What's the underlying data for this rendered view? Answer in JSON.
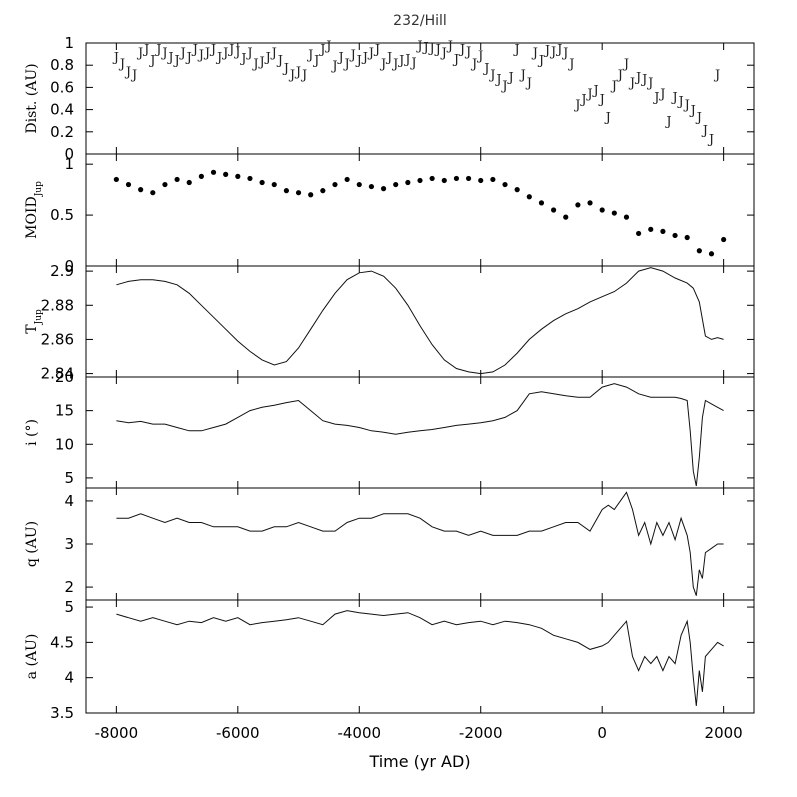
{
  "title": "232/Hill",
  "chart_data": {
    "type": "line",
    "title": "232/Hill",
    "xlabel": "Time (yr AD)",
    "xlim": [
      -8500,
      2500
    ],
    "xticks": [
      -8000,
      -6000,
      -4000,
      -2000,
      0,
      2000
    ],
    "xtick_labels": [
      "-8000",
      "-6000",
      "-4000",
      "-2000",
      "0",
      "2000"
    ],
    "panels": [
      {
        "id": "dist",
        "ylabel": "Dist. (AU)",
        "ylim": [
          0,
          1
        ],
        "yticks": [
          0,
          0.2,
          0.4,
          0.6,
          0.8,
          1
        ],
        "ytick_labels": [
          "0",
          "0.2",
          "0.4",
          "0.6",
          "0.8",
          "1"
        ],
        "style": "J-markers",
        "marker": "J",
        "x": [
          -8000,
          -7900,
          -7800,
          -7700,
          -7600,
          -7500,
          -7400,
          -7300,
          -7200,
          -7100,
          -7000,
          -6900,
          -6800,
          -6700,
          -6600,
          -6500,
          -6400,
          -6300,
          -6200,
          -6100,
          -6000,
          -5900,
          -5800,
          -5700,
          -5600,
          -5500,
          -5400,
          -5300,
          -5200,
          -5100,
          -5000,
          -4900,
          -4800,
          -4700,
          -4600,
          -4500,
          -4400,
          -4300,
          -4200,
          -4100,
          -4000,
          -3900,
          -3800,
          -3700,
          -3600,
          -3500,
          -3400,
          -3300,
          -3200,
          -3100,
          -3000,
          -2900,
          -2800,
          -2700,
          -2600,
          -2500,
          -2400,
          -2300,
          -2200,
          -2100,
          -2000,
          -1900,
          -1800,
          -1700,
          -1600,
          -1500,
          -1400,
          -1300,
          -1200,
          -1100,
          -1000,
          -900,
          -800,
          -700,
          -600,
          -500,
          -400,
          -300,
          -200,
          -100,
          0,
          100,
          200,
          300,
          400,
          500,
          600,
          700,
          800,
          900,
          1000,
          1100,
          1200,
          1300,
          1400,
          1500,
          1600,
          1700,
          1800,
          1900
        ],
        "values": [
          0.88,
          0.82,
          0.75,
          0.72,
          0.92,
          0.95,
          0.85,
          0.95,
          0.92,
          0.88,
          0.85,
          0.92,
          0.88,
          0.95,
          0.9,
          0.92,
          0.95,
          0.88,
          0.92,
          0.95,
          0.93,
          0.87,
          0.92,
          0.82,
          0.84,
          0.88,
          0.92,
          0.85,
          0.78,
          0.72,
          0.75,
          0.72,
          0.9,
          0.85,
          0.95,
          0.98,
          0.8,
          0.88,
          0.82,
          0.9,
          0.85,
          0.88,
          0.92,
          0.95,
          0.82,
          0.88,
          0.82,
          0.85,
          0.86,
          0.83,
          0.98,
          0.97,
          0.96,
          0.95,
          0.92,
          0.98,
          0.86,
          0.95,
          0.93,
          0.82,
          0.89,
          0.78,
          0.72,
          0.68,
          0.62,
          0.7,
          0.95,
          0.72,
          0.65,
          0.92,
          0.85,
          0.94,
          0.93,
          0.95,
          0.92,
          0.82,
          0.45,
          0.5,
          0.55,
          0.58,
          0.5,
          0.34,
          0.62,
          0.72,
          0.82,
          0.65,
          0.7,
          0.68,
          0.65,
          0.52,
          0.55,
          0.3,
          0.52,
          0.48,
          0.45,
          0.4,
          0.34,
          0.22,
          0.14,
          0.72
        ]
      },
      {
        "id": "moid",
        "ylabel": "MOID",
        "ylabel_sub": "Jup",
        "ylim": [
          0,
          1.1
        ],
        "yticks": [
          0,
          0.5,
          1
        ],
        "ytick_labels": [
          "0",
          "0.5",
          "1"
        ],
        "style": "dots",
        "x": [
          -8000,
          -7800,
          -7600,
          -7400,
          -7200,
          -7000,
          -6800,
          -6600,
          -6400,
          -6200,
          -6000,
          -5800,
          -5600,
          -5400,
          -5200,
          -5000,
          -4800,
          -4600,
          -4400,
          -4200,
          -4000,
          -3800,
          -3600,
          -3400,
          -3200,
          -3000,
          -2800,
          -2600,
          -2400,
          -2200,
          -2000,
          -1800,
          -1600,
          -1400,
          -1200,
          -1000,
          -800,
          -600,
          -400,
          -200,
          0,
          200,
          400,
          600,
          800,
          1000,
          1200,
          1400,
          1600,
          1800,
          2000
        ],
        "values": [
          0.85,
          0.8,
          0.75,
          0.72,
          0.8,
          0.85,
          0.82,
          0.88,
          0.92,
          0.9,
          0.88,
          0.86,
          0.82,
          0.8,
          0.74,
          0.72,
          0.7,
          0.74,
          0.8,
          0.85,
          0.8,
          0.78,
          0.76,
          0.8,
          0.82,
          0.84,
          0.86,
          0.84,
          0.86,
          0.86,
          0.84,
          0.85,
          0.8,
          0.75,
          0.68,
          0.62,
          0.55,
          0.48,
          0.6,
          0.62,
          0.55,
          0.52,
          0.48,
          0.32,
          0.36,
          0.34,
          0.3,
          0.28,
          0.15,
          0.12,
          0.26
        ]
      },
      {
        "id": "tjup",
        "ylabel": "T",
        "ylabel_sub": "Jup",
        "ylim": [
          2.838,
          2.903
        ],
        "yticks": [
          2.84,
          2.86,
          2.88,
          2.9
        ],
        "ytick_labels": [
          "2.84",
          "2.86",
          "2.88",
          "2.9"
        ],
        "style": "line",
        "x": [
          -8000,
          -7800,
          -7600,
          -7400,
          -7200,
          -7000,
          -6800,
          -6600,
          -6400,
          -6200,
          -6000,
          -5800,
          -5600,
          -5400,
          -5200,
          -5000,
          -4800,
          -4600,
          -4400,
          -4200,
          -4000,
          -3800,
          -3600,
          -3400,
          -3200,
          -3000,
          -2800,
          -2600,
          -2400,
          -2200,
          -2000,
          -1800,
          -1600,
          -1400,
          -1200,
          -1000,
          -800,
          -600,
          -400,
          -200,
          0,
          200,
          400,
          600,
          800,
          1000,
          1200,
          1400,
          1500,
          1600,
          1700,
          1800,
          1900,
          2000
        ],
        "values": [
          2.892,
          2.894,
          2.895,
          2.895,
          2.894,
          2.892,
          2.887,
          2.88,
          2.873,
          2.866,
          2.859,
          2.853,
          2.848,
          2.845,
          2.847,
          2.855,
          2.866,
          2.877,
          2.887,
          2.895,
          2.899,
          2.9,
          2.897,
          2.89,
          2.88,
          2.868,
          2.857,
          2.848,
          2.843,
          2.841,
          2.84,
          2.841,
          2.845,
          2.852,
          2.86,
          2.866,
          2.871,
          2.875,
          2.878,
          2.882,
          2.885,
          2.888,
          2.893,
          2.9,
          2.902,
          2.9,
          2.896,
          2.893,
          2.89,
          2.882,
          2.862,
          2.86,
          2.861,
          2.86
        ]
      },
      {
        "id": "incl",
        "ylabel": "i (°)",
        "ylim": [
          3.5,
          20
        ],
        "yticks": [
          5,
          10,
          15,
          20
        ],
        "ytick_labels": [
          "5",
          "10",
          "15",
          "20"
        ],
        "style": "line",
        "x": [
          -8000,
          -7800,
          -7600,
          -7400,
          -7200,
          -7000,
          -6800,
          -6600,
          -6400,
          -6200,
          -6000,
          -5800,
          -5600,
          -5400,
          -5200,
          -5000,
          -4800,
          -4600,
          -4400,
          -4200,
          -4000,
          -3800,
          -3600,
          -3400,
          -3200,
          -3000,
          -2800,
          -2600,
          -2400,
          -2200,
          -2000,
          -1800,
          -1600,
          -1400,
          -1200,
          -1000,
          -800,
          -600,
          -400,
          -200,
          0,
          200,
          400,
          600,
          800,
          1000,
          1200,
          1300,
          1400,
          1450,
          1500,
          1550,
          1600,
          1650,
          1700,
          1800,
          1900,
          2000
        ],
        "values": [
          13.5,
          13.2,
          13.4,
          13.0,
          13.0,
          12.5,
          12.0,
          12.0,
          12.5,
          13.0,
          14.0,
          15.0,
          15.5,
          15.8,
          16.2,
          16.5,
          15.0,
          13.5,
          13.0,
          12.8,
          12.5,
          12.0,
          11.8,
          11.5,
          11.8,
          12.0,
          12.2,
          12.5,
          12.8,
          13.0,
          13.2,
          13.5,
          14.0,
          15.0,
          17.5,
          17.8,
          17.5,
          17.2,
          17.0,
          17.0,
          18.5,
          19.0,
          18.5,
          17.5,
          17.0,
          17.0,
          17.0,
          16.8,
          16.5,
          12.0,
          6.0,
          3.8,
          8.0,
          14.0,
          16.5,
          16.0,
          15.5,
          15.0
        ]
      },
      {
        "id": "q",
        "ylabel": "q (AU)",
        "ylim": [
          1.7,
          4.3
        ],
        "yticks": [
          2,
          3,
          4
        ],
        "ytick_labels": [
          "2",
          "3",
          "4"
        ],
        "style": "line",
        "x": [
          -8000,
          -7800,
          -7600,
          -7400,
          -7200,
          -7000,
          -6800,
          -6600,
          -6400,
          -6200,
          -6000,
          -5800,
          -5600,
          -5400,
          -5200,
          -5000,
          -4800,
          -4600,
          -4400,
          -4200,
          -4000,
          -3800,
          -3600,
          -3400,
          -3200,
          -3000,
          -2800,
          -2600,
          -2400,
          -2200,
          -2000,
          -1800,
          -1600,
          -1400,
          -1200,
          -1000,
          -800,
          -600,
          -400,
          -200,
          0,
          100,
          200,
          300,
          400,
          500,
          600,
          700,
          800,
          900,
          1000,
          1100,
          1200,
          1300,
          1400,
          1450,
          1500,
          1550,
          1600,
          1650,
          1700,
          1800,
          1900,
          2000
        ],
        "values": [
          3.6,
          3.6,
          3.7,
          3.6,
          3.5,
          3.6,
          3.5,
          3.5,
          3.4,
          3.4,
          3.4,
          3.3,
          3.3,
          3.4,
          3.4,
          3.5,
          3.4,
          3.3,
          3.3,
          3.5,
          3.6,
          3.6,
          3.7,
          3.7,
          3.7,
          3.6,
          3.4,
          3.3,
          3.3,
          3.2,
          3.3,
          3.2,
          3.2,
          3.2,
          3.3,
          3.3,
          3.4,
          3.5,
          3.5,
          3.3,
          3.8,
          3.9,
          3.8,
          4.0,
          4.2,
          3.8,
          3.2,
          3.5,
          3.0,
          3.5,
          3.2,
          3.5,
          3.1,
          3.6,
          3.2,
          2.8,
          2.0,
          1.8,
          2.4,
          2.2,
          2.8,
          2.9,
          3.0,
          3.0
        ]
      },
      {
        "id": "a",
        "ylabel": "a (AU)",
        "ylim": [
          3.5,
          5.1
        ],
        "yticks": [
          3.5,
          4,
          4.5,
          5
        ],
        "ytick_labels": [
          "3.5",
          "4",
          "4.5",
          "5"
        ],
        "style": "line",
        "x": [
          -8000,
          -7800,
          -7600,
          -7400,
          -7200,
          -7000,
          -6800,
          -6600,
          -6400,
          -6200,
          -6000,
          -5800,
          -5600,
          -5400,
          -5200,
          -5000,
          -4800,
          -4600,
          -4400,
          -4200,
          -4000,
          -3800,
          -3600,
          -3400,
          -3200,
          -3000,
          -2800,
          -2600,
          -2400,
          -2200,
          -2000,
          -1800,
          -1600,
          -1400,
          -1200,
          -1000,
          -800,
          -600,
          -400,
          -200,
          0,
          100,
          200,
          300,
          400,
          500,
          600,
          700,
          800,
          900,
          1000,
          1100,
          1200,
          1300,
          1400,
          1450,
          1500,
          1550,
          1600,
          1650,
          1700,
          1800,
          1900,
          2000
        ],
        "values": [
          4.9,
          4.85,
          4.8,
          4.85,
          4.8,
          4.75,
          4.8,
          4.78,
          4.85,
          4.8,
          4.85,
          4.75,
          4.78,
          4.8,
          4.82,
          4.85,
          4.8,
          4.75,
          4.9,
          4.95,
          4.92,
          4.9,
          4.88,
          4.9,
          4.92,
          4.85,
          4.75,
          4.8,
          4.75,
          4.78,
          4.8,
          4.75,
          4.8,
          4.78,
          4.75,
          4.7,
          4.6,
          4.55,
          4.5,
          4.4,
          4.45,
          4.5,
          4.6,
          4.7,
          4.8,
          4.3,
          4.1,
          4.3,
          4.2,
          4.3,
          4.1,
          4.3,
          4.2,
          4.6,
          4.8,
          4.5,
          4.0,
          3.6,
          4.1,
          3.8,
          4.3,
          4.4,
          4.5,
          4.45
        ]
      }
    ]
  }
}
